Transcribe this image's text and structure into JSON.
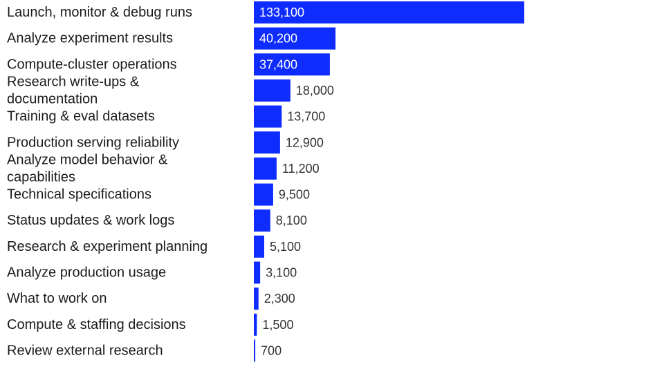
{
  "chart_data": {
    "type": "bar",
    "orientation": "horizontal",
    "categories": [
      "Launch, monitor & debug runs",
      "Analyze experiment results",
      "Compute-cluster operations",
      "Research write-ups & documentation",
      "Training & eval datasets",
      "Production serving reliability",
      "Analyze model behavior & capabilities",
      "Technical specifications",
      "Status updates & work logs",
      "Research & experiment planning",
      "Analyze production usage",
      "What to work on",
      "Compute & staffing decisions",
      "Review external research"
    ],
    "category_lines": [
      [
        "Launch, monitor & debug runs"
      ],
      [
        "Analyze experiment results"
      ],
      [
        "Compute-cluster operations"
      ],
      [
        "Research write-ups &",
        "documentation"
      ],
      [
        "Training & eval datasets"
      ],
      [
        "Production serving reliability"
      ],
      [
        "Analyze model behavior &",
        "capabilities"
      ],
      [
        "Technical specifications"
      ],
      [
        "Status updates & work logs"
      ],
      [
        "Research & experiment planning"
      ],
      [
        "Analyze production usage"
      ],
      [
        "What to work on"
      ],
      [
        "Compute & staffing decisions"
      ],
      [
        "Review external research"
      ]
    ],
    "values": [
      133100,
      40200,
      37400,
      18000,
      13700,
      12900,
      11200,
      9500,
      8100,
      5100,
      3100,
      2300,
      1500,
      700
    ],
    "value_labels": [
      "133,100",
      "40,200",
      "37,400",
      "18,000",
      "13,700",
      "12,900",
      "11,200",
      "9,500",
      "8,100",
      "5,100",
      "3,100",
      "2,300",
      "1,500",
      "700"
    ],
    "xlim": [
      0,
      133100
    ],
    "grid": false,
    "legend": "none",
    "colors": {
      "bar": "#0f2cff",
      "label_inside": "#ffffff",
      "label_outside": "#333333",
      "category_text": "#1a1a1a"
    }
  }
}
